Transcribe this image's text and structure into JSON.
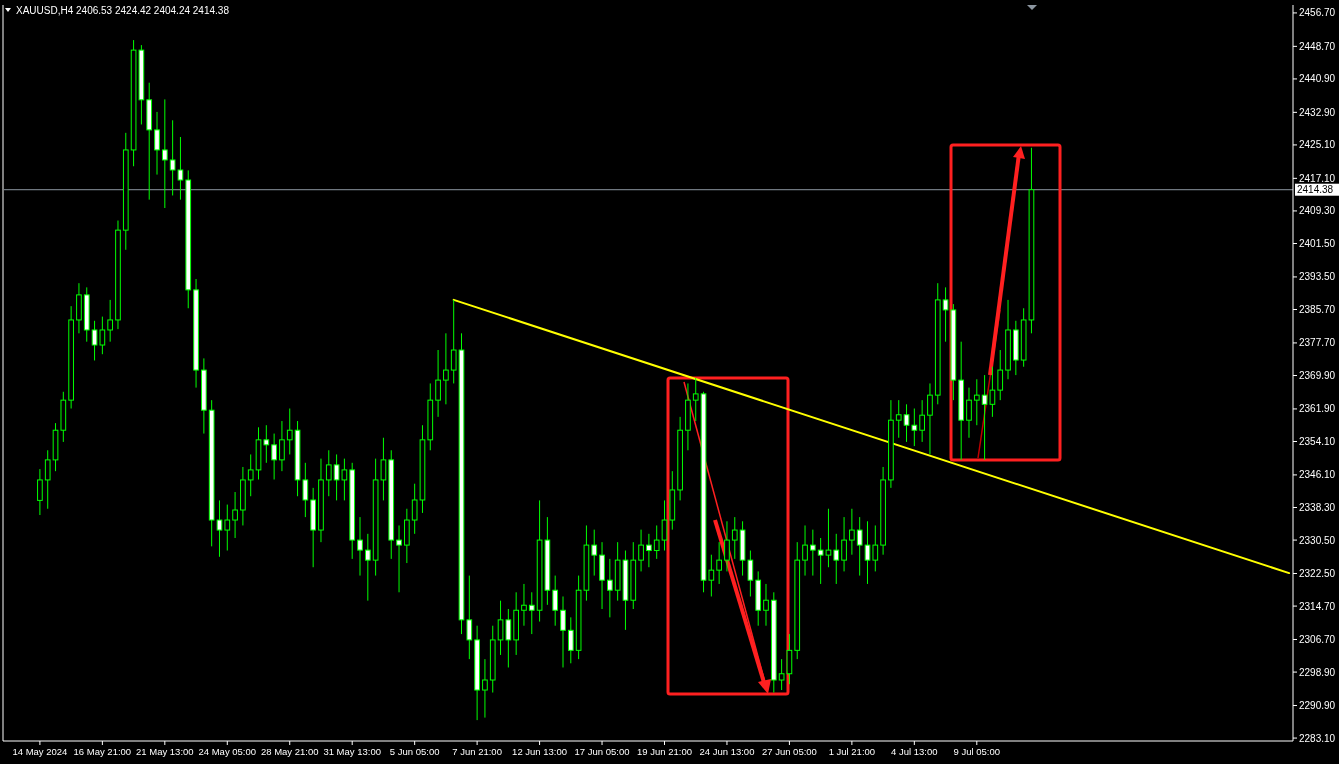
{
  "chart_data": {
    "type": "candlestick",
    "title": "XAUUSD,H4 2406.53 2424.42 2404.24 2414.38",
    "categories": [
      "14 May 2024",
      null,
      null,
      null,
      null,
      null,
      null,
      null,
      "16 May 21:00",
      null,
      null,
      null,
      null,
      null,
      null,
      null,
      "21 May 13:00",
      null,
      null,
      null,
      null,
      null,
      null,
      null,
      "24 May 05:00",
      null,
      null,
      null,
      null,
      null,
      null,
      null,
      "28 May 21:00",
      null,
      null,
      null,
      null,
      null,
      null,
      null,
      "31 May 13:00",
      null,
      null,
      null,
      null,
      null,
      null,
      null,
      "5 Jun 05:00",
      null,
      null,
      null,
      null,
      null,
      null,
      null,
      "7 Jun 21:00",
      null,
      null,
      null,
      null,
      null,
      null,
      null,
      "12 Jun 13:00",
      null,
      null,
      null,
      null,
      null,
      null,
      null,
      "17 Jun 05:00",
      null,
      null,
      null,
      null,
      null,
      null,
      null,
      "19 Jun 21:00",
      null,
      null,
      null,
      null,
      null,
      null,
      null,
      "24 Jun 13:00",
      null,
      null,
      null,
      null,
      null,
      null,
      null,
      "27 Jun 05:00",
      null,
      null,
      null,
      null,
      null,
      null,
      null,
      "1 Jul 21:00",
      null,
      null,
      null,
      null,
      null,
      null,
      null,
      "4 Jul 13:00",
      null,
      null,
      null,
      null,
      null,
      null,
      null,
      "9 Jul 05:00",
      null,
      null,
      null,
      null,
      null,
      null,
      null,
      null,
      null,
      null,
      null,
      null,
      null,
      null,
      null,
      null,
      null,
      null,
      null,
      null,
      null,
      null,
      null,
      null,
      null,
      null,
      null,
      null,
      null,
      null,
      null,
      null,
      null,
      null,
      null,
      null,
      null,
      null,
      null,
      null
    ],
    "series": [
      {
        "type": "candlestick",
        "color": "#00ff00",
        "ohlc": [
          [
            2340.0,
            2347.5,
            2336.5,
            2344.9
          ],
          [
            2344.9,
            2352.0,
            2338.0,
            2349.7
          ],
          [
            2349.7,
            2358.5,
            2347.0,
            2356.8
          ],
          [
            2356.8,
            2366.0,
            2354.0,
            2364.0
          ],
          [
            2364.0,
            2386.5,
            2362.0,
            2383.2
          ],
          [
            2383.2,
            2392.0,
            2380.0,
            2389.2
          ],
          [
            2389.2,
            2391.0,
            2378.0,
            2380.8
          ],
          [
            2380.8,
            2383.0,
            2373.5,
            2377.2
          ],
          [
            2377.2,
            2384.0,
            2375.0,
            2380.8
          ],
          [
            2380.8,
            2388.0,
            2378.0,
            2383.2
          ],
          [
            2383.2,
            2407.0,
            2381.0,
            2404.7
          ],
          [
            2404.7,
            2428.0,
            2400.0,
            2423.9
          ],
          [
            2423.9,
            2450.2,
            2420.0,
            2447.8
          ],
          [
            2447.8,
            2449.0,
            2430.0,
            2435.9
          ],
          [
            2435.9,
            2440.0,
            2412.0,
            2428.7
          ],
          [
            2428.7,
            2433.0,
            2418.0,
            2423.9
          ],
          [
            2423.9,
            2436.0,
            2410.0,
            2421.5
          ],
          [
            2421.5,
            2431.0,
            2413.0,
            2419.1
          ],
          [
            2419.1,
            2427.0,
            2412.0,
            2416.7
          ],
          [
            2416.7,
            2419.0,
            2386.0,
            2390.4
          ],
          [
            2390.4,
            2393.0,
            2367.0,
            2371.2
          ],
          [
            2371.2,
            2374.0,
            2356.0,
            2361.6
          ],
          [
            2361.6,
            2364.0,
            2329.0,
            2335.3
          ],
          [
            2335.3,
            2340.0,
            2326.5,
            2332.9
          ],
          [
            2332.9,
            2339.0,
            2328.0,
            2335.3
          ],
          [
            2335.3,
            2342.0,
            2331.0,
            2337.7
          ],
          [
            2337.7,
            2348.0,
            2334.0,
            2344.9
          ],
          [
            2344.9,
            2351.0,
            2341.0,
            2347.3
          ],
          [
            2347.3,
            2357.5,
            2345.0,
            2354.5
          ],
          [
            2354.5,
            2358.0,
            2349.0,
            2353.3
          ],
          [
            2353.3,
            2356.0,
            2345.0,
            2349.7
          ],
          [
            2349.7,
            2359.0,
            2347.0,
            2354.5
          ],
          [
            2354.5,
            2362.0,
            2351.0,
            2356.8
          ],
          [
            2356.8,
            2359.0,
            2341.0,
            2344.9
          ],
          [
            2344.9,
            2349.0,
            2336.0,
            2340.1
          ],
          [
            2340.1,
            2343.0,
            2324.0,
            2332.9
          ],
          [
            2332.9,
            2350.0,
            2330.0,
            2344.9
          ],
          [
            2344.9,
            2352.0,
            2341.0,
            2348.5
          ],
          [
            2348.5,
            2351.0,
            2340.0,
            2344.9
          ],
          [
            2344.9,
            2350.0,
            2340.0,
            2347.3
          ],
          [
            2347.3,
            2349.0,
            2326.0,
            2330.5
          ],
          [
            2330.5,
            2336.0,
            2322.0,
            2328.1
          ],
          [
            2328.1,
            2332.0,
            2316.0,
            2325.7
          ],
          [
            2325.7,
            2350.0,
            2322.0,
            2344.9
          ],
          [
            2344.9,
            2355.0,
            2340.0,
            2349.7
          ],
          [
            2349.7,
            2352.0,
            2326.0,
            2330.5
          ],
          [
            2330.5,
            2334.0,
            2318.0,
            2329.3
          ],
          [
            2329.3,
            2338.0,
            2325.0,
            2335.3
          ],
          [
            2335.3,
            2344.0,
            2332.0,
            2340.1
          ],
          [
            2340.1,
            2358.0,
            2337.0,
            2354.5
          ],
          [
            2354.5,
            2368.0,
            2352.0,
            2364.0
          ],
          [
            2364.0,
            2376.0,
            2360.0,
            2368.8
          ],
          [
            2368.8,
            2380.0,
            2363.0,
            2371.2
          ],
          [
            2371.2,
            2388.0,
            2368.0,
            2376.0
          ],
          [
            2376.0,
            2380.0,
            2308.0,
            2311.4
          ],
          [
            2311.4,
            2322.0,
            2302.0,
            2306.6
          ],
          [
            2306.6,
            2310.0,
            2287.4,
            2294.6
          ],
          [
            2294.6,
            2302.0,
            2288.0,
            2297.0
          ],
          [
            2297.0,
            2310.0,
            2294.0,
            2306.6
          ],
          [
            2306.6,
            2316.0,
            2303.0,
            2311.4
          ],
          [
            2311.4,
            2314.0,
            2300.0,
            2306.6
          ],
          [
            2306.6,
            2318.0,
            2303.0,
            2313.7
          ],
          [
            2313.7,
            2320.0,
            2310.0,
            2314.9
          ],
          [
            2314.9,
            2318.0,
            2308.0,
            2313.7
          ],
          [
            2313.7,
            2340.0,
            2311.0,
            2330.5
          ],
          [
            2330.5,
            2336.0,
            2315.0,
            2318.5
          ],
          [
            2318.5,
            2322.0,
            2310.0,
            2313.7
          ],
          [
            2313.7,
            2317.0,
            2300.0,
            2308.9
          ],
          [
            2308.9,
            2312.0,
            2301.0,
            2304.1
          ],
          [
            2304.1,
            2322.0,
            2302.0,
            2318.5
          ],
          [
            2318.5,
            2334.0,
            2316.0,
            2329.3
          ],
          [
            2329.3,
            2333.0,
            2322.0,
            2326.9
          ],
          [
            2326.9,
            2330.0,
            2314.0,
            2320.9
          ],
          [
            2320.9,
            2326.0,
            2312.0,
            2318.5
          ],
          [
            2318.5,
            2330.0,
            2316.0,
            2325.7
          ],
          [
            2325.7,
            2328.0,
            2309.0,
            2316.1
          ],
          [
            2316.1,
            2330.0,
            2314.0,
            2325.7
          ],
          [
            2325.7,
            2333.0,
            2323.0,
            2329.3
          ],
          [
            2329.3,
            2332.0,
            2324.0,
            2328.0
          ],
          [
            2328.0,
            2334.0,
            2326.0,
            2330.5
          ],
          [
            2330.5,
            2340.0,
            2328.0,
            2335.3
          ],
          [
            2335.3,
            2347.0,
            2333.0,
            2342.5
          ],
          [
            2342.5,
            2360.0,
            2340.0,
            2356.8
          ],
          [
            2356.8,
            2368.0,
            2352.0,
            2364.0
          ],
          [
            2364.0,
            2369.3,
            2359.0,
            2365.5
          ],
          [
            2365.5,
            2366.0,
            2318.0,
            2320.9
          ],
          [
            2320.9,
            2327.0,
            2317.0,
            2323.3
          ],
          [
            2323.3,
            2330.0,
            2320.0,
            2325.7
          ],
          [
            2325.7,
            2335.0,
            2323.0,
            2330.5
          ],
          [
            2330.5,
            2336.0,
            2326.0,
            2332.9
          ],
          [
            2332.9,
            2335.0,
            2322.0,
            2325.7
          ],
          [
            2325.7,
            2328.0,
            2317.0,
            2320.9
          ],
          [
            2320.9,
            2323.0,
            2310.0,
            2313.7
          ],
          [
            2313.7,
            2320.0,
            2310.0,
            2316.1
          ],
          [
            2316.1,
            2318.0,
            2294.0,
            2297.0
          ],
          [
            2297.0,
            2302.0,
            2294.6,
            2298.5
          ],
          [
            2298.5,
            2308.0,
            2296.0,
            2304.1
          ],
          [
            2304.1,
            2330.0,
            2302.0,
            2325.7
          ],
          [
            2325.7,
            2334.0,
            2322.0,
            2329.3
          ],
          [
            2329.3,
            2333.0,
            2322.0,
            2328.1
          ],
          [
            2328.1,
            2331.0,
            2320.0,
            2326.9
          ],
          [
            2326.9,
            2338.0,
            2324.0,
            2328.1
          ],
          [
            2328.1,
            2332.0,
            2320.0,
            2325.7
          ],
          [
            2325.7,
            2336.0,
            2323.0,
            2330.5
          ],
          [
            2330.5,
            2338.0,
            2327.0,
            2332.9
          ],
          [
            2332.9,
            2336.0,
            2322.0,
            2329.3
          ],
          [
            2329.3,
            2335.0,
            2320.0,
            2325.7
          ],
          [
            2325.7,
            2334.0,
            2323.0,
            2329.3
          ],
          [
            2329.3,
            2348.0,
            2327.0,
            2344.9
          ],
          [
            2344.9,
            2364.0,
            2343.0,
            2359.2
          ],
          [
            2359.2,
            2364.0,
            2355.0,
            2360.5
          ],
          [
            2360.5,
            2363.0,
            2354.0,
            2358.0
          ],
          [
            2358.0,
            2362.0,
            2353.0,
            2356.8
          ],
          [
            2356.8,
            2364.0,
            2354.0,
            2360.4
          ],
          [
            2360.4,
            2368.0,
            2351.0,
            2365.2
          ],
          [
            2365.2,
            2392.0,
            2363.0,
            2388.0
          ],
          [
            2388.0,
            2391.0,
            2378.0,
            2385.6
          ],
          [
            2385.6,
            2387.0,
            2364.0,
            2368.8
          ],
          [
            2368.8,
            2378.0,
            2349.7,
            2359.2
          ],
          [
            2359.2,
            2367.0,
            2355.0,
            2364.0
          ],
          [
            2364.0,
            2369.0,
            2358.0,
            2365.2
          ],
          [
            2365.2,
            2370.0,
            2349.7,
            2363.0
          ],
          [
            2363.0,
            2372.0,
            2360.0,
            2366.4
          ],
          [
            2366.4,
            2376.0,
            2364.0,
            2371.2
          ],
          [
            2371.2,
            2388.0,
            2369.0,
            2380.8
          ],
          [
            2380.8,
            2383.0,
            2370.0,
            2373.6
          ],
          [
            2373.6,
            2386.0,
            2372.0,
            2383.2
          ],
          [
            2383.2,
            2424.42,
            2380.0,
            2414.38
          ],
          null,
          null,
          null,
          null,
          null,
          null,
          null,
          null,
          null,
          null,
          null,
          null,
          null,
          null,
          null,
          null,
          null,
          null,
          null,
          null,
          null,
          null,
          null,
          null,
          null,
          null,
          null,
          null,
          null,
          null,
          null,
          null,
          null
        ]
      },
      {
        "type": "line",
        "color": "#ffff00",
        "values": [
          null,
          null,
          null,
          null,
          null,
          null,
          null,
          null,
          null,
          null,
          null,
          null,
          null,
          null,
          null,
          null,
          null,
          null,
          null,
          null,
          null,
          null,
          null,
          null,
          null,
          null,
          null,
          null,
          null,
          null,
          null,
          null,
          null,
          null,
          null,
          null,
          null,
          null,
          null,
          null,
          null,
          null,
          null,
          null,
          null,
          null,
          null,
          null,
          null,
          null,
          null,
          null,
          null,
          2388.0,
          null,
          null,
          null,
          null,
          null,
          null,
          null,
          null,
          null,
          null,
          null,
          null,
          null,
          null,
          null,
          null,
          null,
          null,
          null,
          null,
          null,
          null,
          null,
          null,
          null,
          null,
          null,
          null,
          null,
          null,
          null,
          null,
          null,
          null,
          null,
          null,
          null,
          null,
          null,
          null,
          null,
          null,
          null,
          null,
          null,
          null,
          null,
          null,
          null,
          null,
          null,
          null,
          null,
          null,
          null,
          null,
          null,
          null,
          null,
          null,
          null,
          null,
          null,
          null,
          null,
          null,
          null,
          null,
          null,
          null,
          null,
          null,
          null,
          null,
          null,
          null,
          null,
          null,
          null,
          null,
          null,
          null,
          null,
          null,
          null,
          null,
          null,
          null,
          null,
          null,
          null,
          null,
          null,
          null,
          null,
          null,
          null,
          null,
          null,
          null,
          null,
          null,
          null,
          null,
          null,
          null,
          2322.6
        ]
      }
    ],
    "ylim": [
      2282.4,
      2458.6
    ],
    "yticks": [
      {
        "value": 2283.1,
        "label": "2283.10"
      },
      {
        "value": 2290.9,
        "label": "2290.90"
      },
      {
        "value": 2298.9,
        "label": "2298.90"
      },
      {
        "value": 2306.7,
        "label": "2306.70"
      },
      {
        "value": 2314.7,
        "label": "2314.70"
      },
      {
        "value": 2322.5,
        "label": "2322.50"
      },
      {
        "value": 2330.5,
        "label": "2330.50"
      },
      {
        "value": 2338.3,
        "label": "2338.30"
      },
      {
        "value": 2346.1,
        "label": "2346.10"
      },
      {
        "value": 2354.1,
        "label": "2354.10"
      },
      {
        "value": 2361.9,
        "label": "2361.90"
      },
      {
        "value": 2369.9,
        "label": "2369.90"
      },
      {
        "value": 2377.7,
        "label": "2377.70"
      },
      {
        "value": 2385.7,
        "label": "2385.70"
      },
      {
        "value": 2393.5,
        "label": "2393.50"
      },
      {
        "value": 2401.5,
        "label": "2401.50"
      },
      {
        "value": 2409.3,
        "label": "2409.30"
      },
      {
        "value": 2417.1,
        "label": "2417.10"
      },
      {
        "value": 2425.1,
        "label": "2425.10"
      },
      {
        "value": 2432.9,
        "label": "2432.90"
      },
      {
        "value": 2440.9,
        "label": "2440.90"
      },
      {
        "value": 2448.7,
        "label": "2448.70"
      },
      {
        "value": 2456.7,
        "label": "2456.70"
      }
    ],
    "ref_lines": [
      {
        "axis": "y",
        "value": 2414.38,
        "label": "2414.38",
        "color": "#8c96a0"
      }
    ],
    "grid": false
  }
}
